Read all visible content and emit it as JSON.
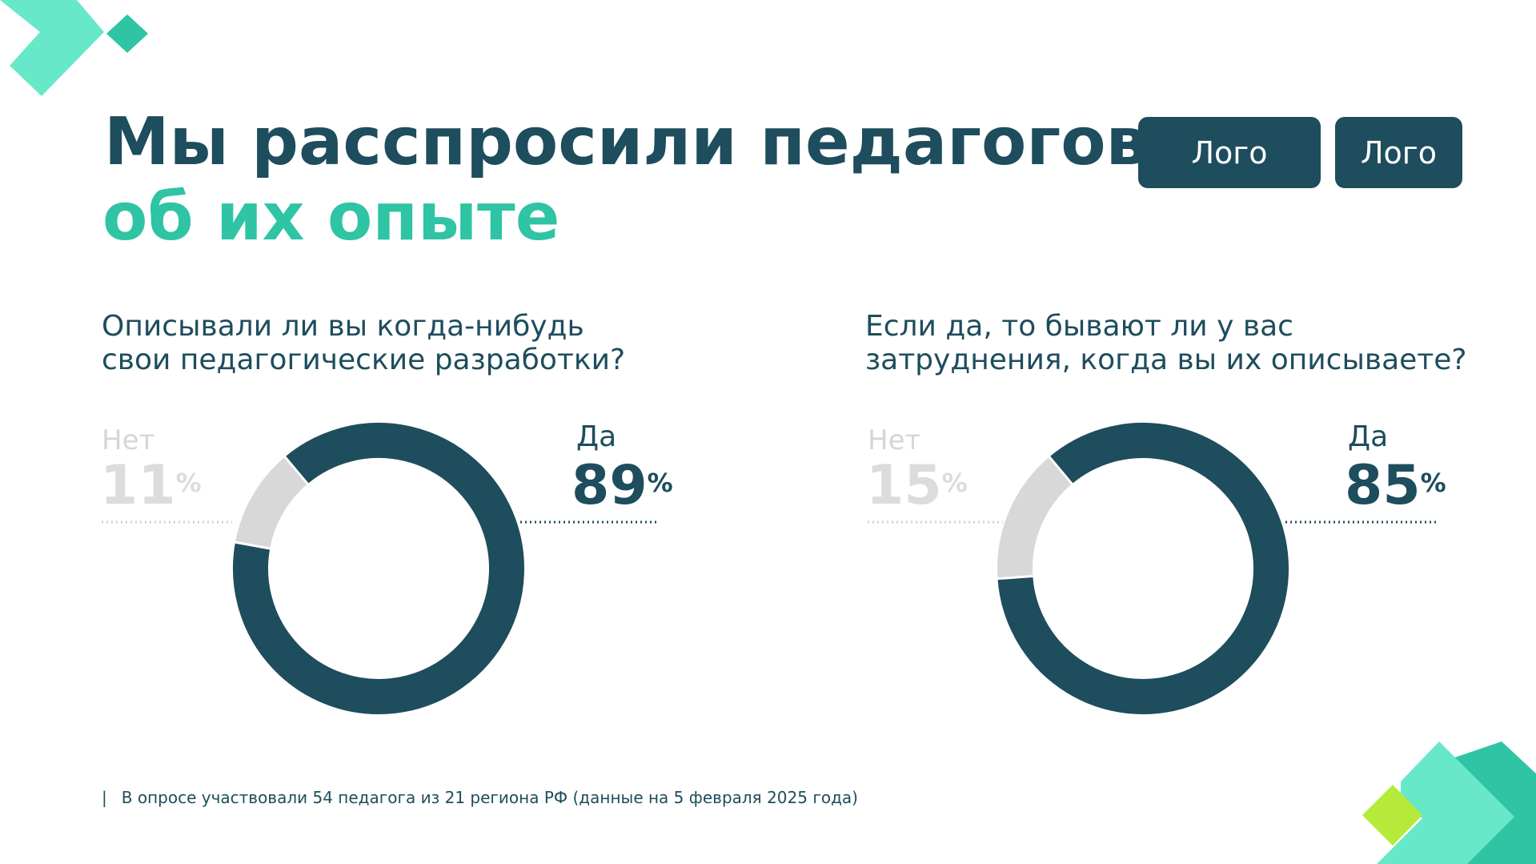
{
  "title": {
    "line1": "Мы расспросили педагогов",
    "line2": "об их опыте"
  },
  "logos": [
    "Лого",
    "Лого"
  ],
  "footnote": {
    "separator": "|",
    "text": "В опросе участвовали 54 педагога из 21 региона РФ (данные на 5 февраля 2025 года)"
  },
  "colors": {
    "primary": "#1e4d5d",
    "accent": "#2ec4a4",
    "accent_light": "#67e8c8",
    "lime": "#b6ea3a",
    "muted": "#d8d8d8"
  },
  "chart_data": [
    {
      "type": "pie",
      "title": "Описывали ли вы когда-нибудь свои педагогические разработки?",
      "title_lines": [
        "Описывали ли вы когда-нибудь",
        "свои педагогические разработки?"
      ],
      "categories": [
        "Нет",
        "Да"
      ],
      "values": [
        11,
        89
      ],
      "unit": "%",
      "colors": [
        "#d8d8d8",
        "#1e4d5d"
      ]
    },
    {
      "type": "pie",
      "title": "Если да, то бывают ли у вас затруднения, когда вы их описываете?",
      "title_lines": [
        "Если да, то бывают ли у вас",
        "затруднения, когда вы их описываете?"
      ],
      "categories": [
        "Нет",
        "Да"
      ],
      "values": [
        15,
        85
      ],
      "unit": "%",
      "colors": [
        "#d8d8d8",
        "#1e4d5d"
      ]
    }
  ]
}
